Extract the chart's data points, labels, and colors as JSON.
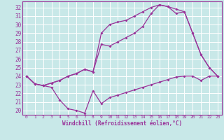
{
  "xlabel": "Windchill (Refroidissement éolien,°C)",
  "xlim": [
    -0.5,
    23.5
  ],
  "ylim": [
    19.5,
    32.7
  ],
  "xticks": [
    0,
    1,
    2,
    3,
    4,
    5,
    6,
    7,
    8,
    9,
    10,
    11,
    12,
    13,
    14,
    15,
    16,
    17,
    18,
    19,
    20,
    21,
    22,
    23
  ],
  "yticks": [
    20,
    21,
    22,
    23,
    24,
    25,
    26,
    27,
    28,
    29,
    30,
    31,
    32
  ],
  "bg_color": "#c8e8e8",
  "grid_color": "#ffffff",
  "line_color": "#993399",
  "line1_x": [
    0,
    1,
    2,
    3,
    4,
    5,
    6,
    7,
    8,
    9,
    10,
    11,
    12,
    13,
    14,
    15,
    16,
    17,
    18,
    19,
    20,
    21,
    22,
    23
  ],
  "line1_y": [
    24.0,
    23.1,
    22.9,
    22.7,
    21.2,
    20.2,
    20.0,
    19.7,
    22.3,
    20.8,
    21.5,
    21.8,
    22.1,
    22.4,
    22.7,
    23.0,
    23.3,
    23.6,
    23.9,
    24.0,
    24.0,
    23.5,
    24.0,
    24.0
  ],
  "line2_x": [
    0,
    1,
    2,
    3,
    4,
    5,
    6,
    7,
    8,
    9,
    10,
    11,
    12,
    13,
    14,
    15,
    16,
    17,
    18,
    19,
    20,
    21,
    22,
    23
  ],
  "line2_y": [
    24.0,
    23.1,
    22.9,
    23.2,
    23.5,
    24.0,
    24.3,
    24.8,
    24.5,
    27.7,
    27.5,
    28.0,
    28.5,
    29.0,
    29.8,
    31.3,
    32.3,
    32.1,
    31.3,
    31.5,
    29.0,
    26.5,
    25.0,
    24.0
  ],
  "line3_x": [
    0,
    1,
    2,
    3,
    4,
    5,
    6,
    7,
    8,
    9,
    10,
    11,
    12,
    13,
    14,
    15,
    16,
    17,
    18,
    19,
    20,
    21,
    22,
    23
  ],
  "line3_y": [
    24.0,
    23.1,
    22.9,
    23.2,
    23.5,
    24.0,
    24.3,
    24.8,
    24.5,
    29.0,
    30.0,
    30.3,
    30.5,
    31.0,
    31.5,
    32.0,
    32.3,
    32.1,
    31.8,
    31.5,
    29.0,
    26.5,
    25.0,
    24.0
  ]
}
